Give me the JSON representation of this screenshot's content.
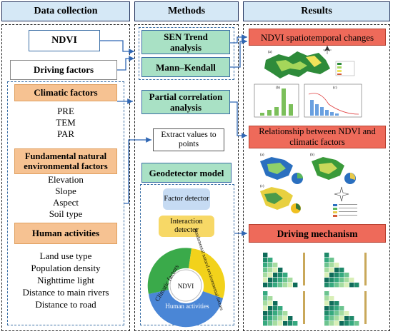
{
  "headers": {
    "data_collection": "Data collection",
    "methods": "Methods",
    "results": "Results"
  },
  "data_collection": {
    "ndvi": "NDVI",
    "driving_factors": "Driving factors",
    "climatic": {
      "title": "Climatic factors",
      "items": [
        "PRE",
        "TEM",
        "PAR"
      ]
    },
    "fundamental": {
      "title": "Fundamental natural environmental factors",
      "items": [
        "Elevation",
        "Slope",
        "Aspect",
        "Soil type"
      ]
    },
    "human": {
      "title": "Human activities",
      "items": [
        "Land use type",
        "Population density",
        "Nighttime light",
        "Distance to main rivers",
        "Distance to road"
      ]
    }
  },
  "methods": {
    "sen_trend": "SEN Trend analysis",
    "mann_kendall": "Mann–Kendall",
    "partial_correlation": "Partial correlation analysis",
    "extract_values": "Extract values to points",
    "geodetector": "Geodetector model",
    "factor_detector": "Factor detector",
    "interaction_detector": "Interaction detector",
    "ring": {
      "center": "NDVI",
      "climatic": "Climatic factors",
      "fundamental": "Fundamental natural environmental factors",
      "human": "Human activities"
    }
  },
  "results": {
    "ndvi_changes": "NDVI spatiotemporal changes",
    "relationship": "Relationship between NDVI and climatic factors",
    "driving_mechanism": "Driving mechanism",
    "panel_labels": {
      "a": "(a)",
      "b": "(b)",
      "c": "(c)"
    }
  },
  "colors": {
    "header_bg": "#d5e8f6",
    "method_green": "#a9e1c5",
    "factor_orange": "#f6c292",
    "result_red": "#ee6a5a",
    "arrow_blue": "#2f66b3",
    "ring_green": "#3aaa4a",
    "ring_yellow": "#f2d21b",
    "ring_blue": "#4a86d6"
  }
}
